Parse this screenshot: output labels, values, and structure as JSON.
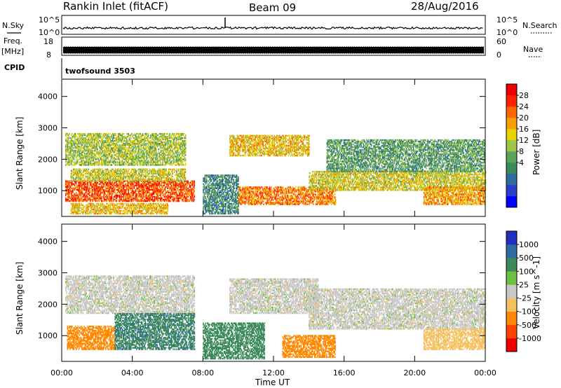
{
  "header": {
    "station": "Rankin Inlet (fitACF)",
    "beam": "Beam 09",
    "date": "28/Aug/2016"
  },
  "strip_panels": {
    "nsky": {
      "label": "N.Sky",
      "tick_top": "10^5",
      "tick_bottom": "10^0",
      "right_label": "N.Search",
      "right_tick_top": "10^5",
      "right_tick_bottom": "10^0"
    },
    "freq": {
      "label_top": "Freq.",
      "label_bottom": "[MHz]",
      "tick_top": "18",
      "tick_bottom": "8",
      "right_label": "Nave",
      "right_tick_top": "60",
      "right_tick_bottom": "0"
    },
    "cpid": {
      "label": "CPID",
      "value": "twofsound 3503"
    }
  },
  "chart_data": [
    {
      "type": "heatmap",
      "name": "power",
      "xlabel": "",
      "ylabel": "Slant Range [km]",
      "x_ticks": [
        "00:00",
        "04:00",
        "08:00",
        "12:00",
        "16:00",
        "20:00",
        "00:00"
      ],
      "x_range_hours": [
        0,
        24
      ],
      "y_ticks": [
        1000,
        2000,
        3000,
        4000
      ],
      "ylim": [
        180,
        4550
      ],
      "colorbar": {
        "label": "Power [dB]",
        "ticks": [
          "28",
          "24",
          "20",
          "16",
          "12",
          "8",
          "4"
        ],
        "range": [
          0,
          32
        ],
        "colors": [
          "#0000ff",
          "#2a3fc8",
          "#2f6ba0",
          "#3c8a5a",
          "#5aa35a",
          "#9cc54a",
          "#e8d200",
          "#f5a000",
          "#ff6600",
          "#ff2200",
          "#ee0000"
        ]
      },
      "regions": [
        {
          "t0": 0.2,
          "t1": 7.5,
          "r0": 650,
          "r1": 1300,
          "level": 26
        },
        {
          "t0": 0.5,
          "t1": 7.0,
          "r0": 1300,
          "r1": 1700,
          "level": 18
        },
        {
          "t0": 0.2,
          "t1": 7.0,
          "r0": 1800,
          "r1": 2800,
          "level": 16
        },
        {
          "t0": 9.5,
          "t1": 14.0,
          "r0": 2100,
          "r1": 2750,
          "level": 20
        },
        {
          "t0": 10.0,
          "t1": 15.5,
          "r0": 550,
          "r1": 1100,
          "level": 24
        },
        {
          "t0": 14.0,
          "t1": 24.0,
          "r0": 1000,
          "r1": 1600,
          "level": 18
        },
        {
          "t0": 15.0,
          "t1": 24.0,
          "r0": 1600,
          "r1": 2600,
          "level": 12
        },
        {
          "t0": 20.5,
          "t1": 24.0,
          "r0": 550,
          "r1": 1100,
          "level": 22
        },
        {
          "t0": 0.5,
          "t1": 6.0,
          "r0": 250,
          "r1": 600,
          "level": 20
        },
        {
          "t0": 8.0,
          "t1": 10.0,
          "r0": 250,
          "r1": 1500,
          "level": 10
        }
      ]
    },
    {
      "type": "heatmap",
      "name": "velocity",
      "xlabel": "Time UT",
      "ylabel": "Slant Range [km]",
      "x_ticks": [
        "00:00",
        "04:00",
        "08:00",
        "12:00",
        "16:00",
        "20:00",
        "00:00"
      ],
      "x_range_hours": [
        0,
        24
      ],
      "y_ticks": [
        1000,
        2000,
        3000,
        4000
      ],
      "ylim": [
        180,
        4550
      ],
      "colorbar": {
        "label": "Velocity [m s^-1]",
        "ticks": [
          "1000",
          "500",
          "100",
          "25",
          "-25",
          "-100",
          "-500",
          "-1000"
        ],
        "colors": [
          "#ee0000",
          "#ff4400",
          "#ff8800",
          "#f5c060",
          "#c8c8c8",
          "#70c040",
          "#3c8a5a",
          "#2f6ba0",
          "#2030c0"
        ]
      },
      "regions": [
        {
          "t0": 0.2,
          "t1": 7.5,
          "r0": 1700,
          "r1": 2900,
          "level": 0
        },
        {
          "t0": 0.3,
          "t1": 3.0,
          "r0": 550,
          "r1": 1300,
          "level": -300
        },
        {
          "t0": 3.0,
          "t1": 7.5,
          "r0": 550,
          "r1": 1700,
          "level": 400
        },
        {
          "t0": 9.5,
          "t1": 14.5,
          "r0": 1700,
          "r1": 2800,
          "level": 0
        },
        {
          "t0": 12.5,
          "t1": 15.5,
          "r0": 300,
          "r1": 1000,
          "level": -200
        },
        {
          "t0": 14.0,
          "t1": 24.0,
          "r0": 1200,
          "r1": 2500,
          "level": 0
        },
        {
          "t0": 20.5,
          "t1": 24.0,
          "r0": 550,
          "r1": 1200,
          "level": -60
        },
        {
          "t0": 8.0,
          "t1": 11.5,
          "r0": 250,
          "r1": 1400,
          "level": 200
        }
      ]
    }
  ]
}
